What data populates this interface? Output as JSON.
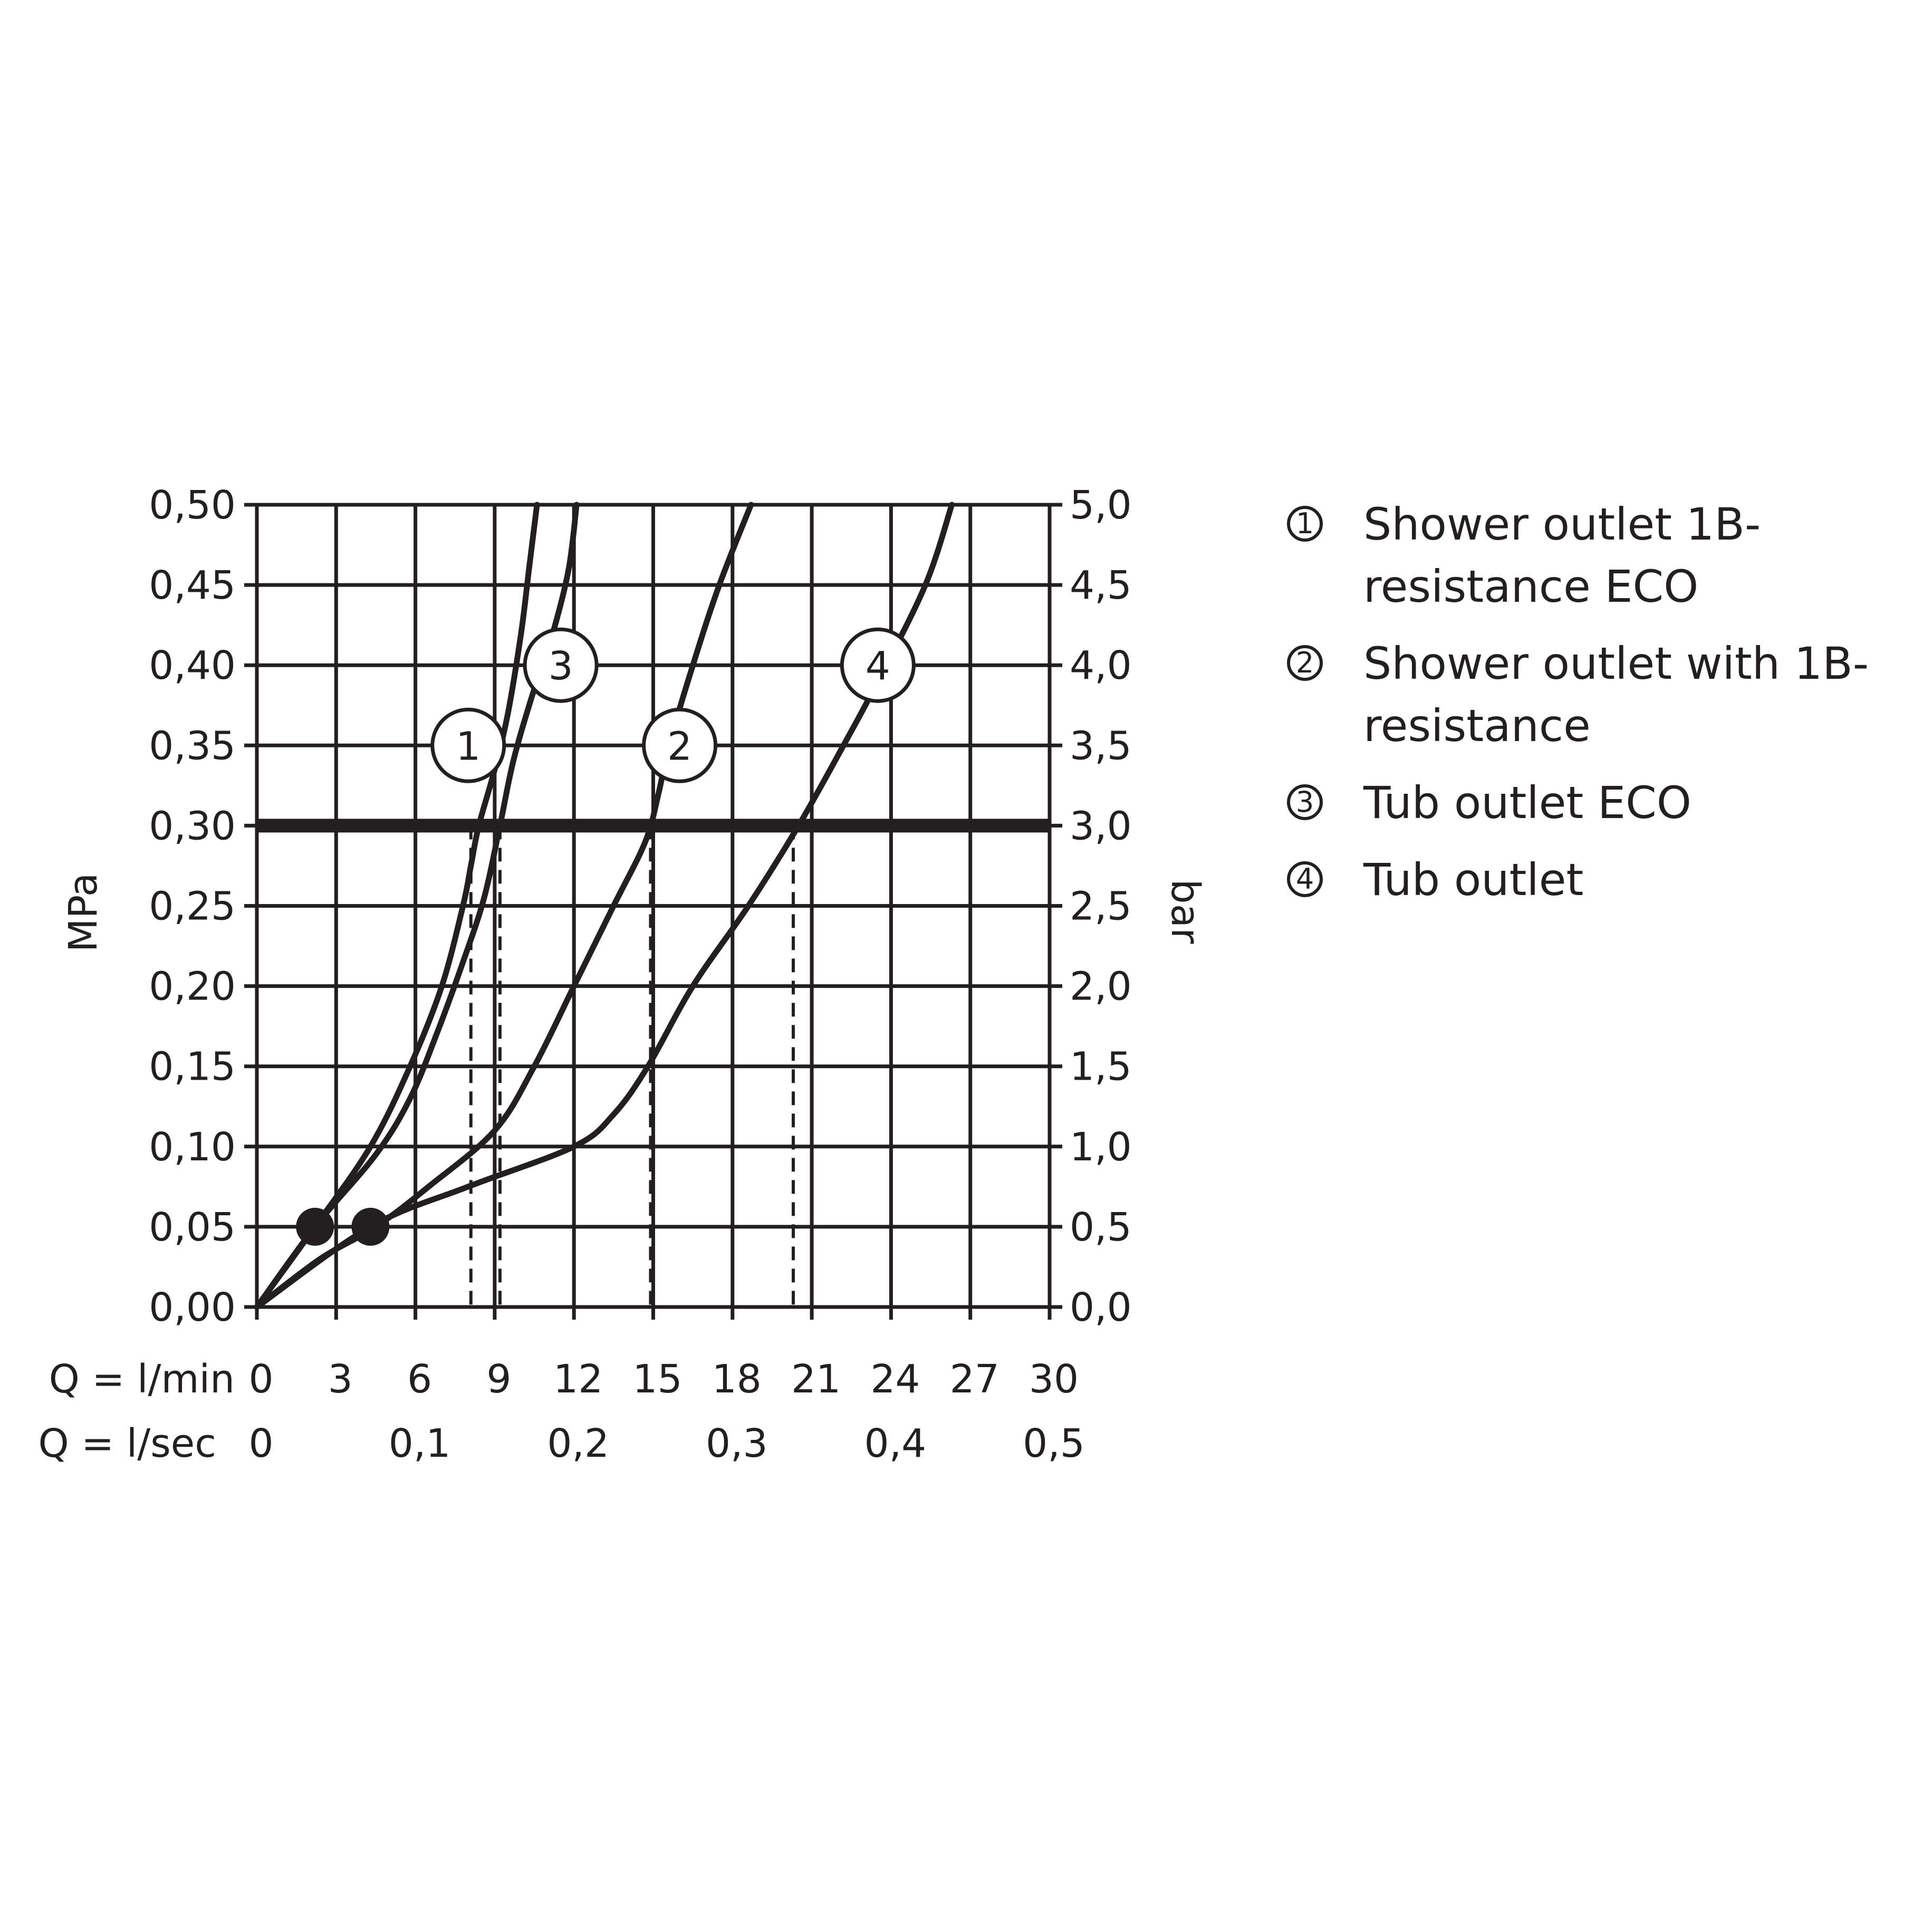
{
  "chart_data": {
    "type": "line",
    "ylabel_left": "MPa",
    "ylabel_right": "bar",
    "x_row_labels": [
      "Q = l/min",
      "Q = l/sec"
    ],
    "x_ticks_lmin": [
      "0",
      "3",
      "6",
      "9",
      "12",
      "15",
      "18",
      "21",
      "24",
      "27",
      "30"
    ],
    "x_ticks_lsec": [
      {
        "value": 0,
        "label": "0"
      },
      {
        "value": 6,
        "label": "0,1"
      },
      {
        "value": 12,
        "label": "0,2"
      },
      {
        "value": 18,
        "label": "0,3"
      },
      {
        "value": 24,
        "label": "0,4"
      },
      {
        "value": 30,
        "label": "0,5"
      }
    ],
    "y_ticks_left": [
      "0,00",
      "0,05",
      "0,10",
      "0,15",
      "0,20",
      "0,25",
      "0,30",
      "0,35",
      "0,40",
      "0,45",
      "0,50"
    ],
    "y_ticks_right": [
      "0,0",
      "0,5",
      "1,0",
      "1,5",
      "2,0",
      "2,5",
      "3,0",
      "3,5",
      "4,0",
      "4,5",
      "5,0"
    ],
    "xlim": [
      0,
      30
    ],
    "ylim": [
      0,
      0.5
    ],
    "grid": true,
    "reference_line": {
      "y": 0.3
    },
    "series": [
      {
        "marker": "1",
        "color": "#231f20",
        "points": [
          [
            0,
            0
          ],
          [
            2.2,
            0.05
          ],
          [
            4.3,
            0.1
          ],
          [
            5.8,
            0.15
          ],
          [
            7,
            0.2
          ],
          [
            7.8,
            0.25
          ],
          [
            8.1,
            0.275
          ],
          [
            8.4,
            0.3
          ],
          [
            9,
            0.335
          ],
          [
            9.5,
            0.37
          ],
          [
            10,
            0.42
          ],
          [
            10.3,
            0.46
          ],
          [
            10.6,
            0.5
          ]
        ],
        "label_at": [
          8,
          0.35
        ],
        "drop_x": 8.1
      },
      {
        "marker": "2",
        "color": "#231f20",
        "points": [
          [
            0,
            0
          ],
          [
            2.4,
            0.03
          ],
          [
            4.5,
            0.05
          ],
          [
            6.5,
            0.075
          ],
          [
            9,
            0.11
          ],
          [
            10.5,
            0.15
          ],
          [
            12,
            0.2
          ],
          [
            13.5,
            0.25
          ],
          [
            14.7,
            0.29
          ],
          [
            15.2,
            0.32
          ],
          [
            15.6,
            0.35
          ],
          [
            16.5,
            0.4
          ],
          [
            17.5,
            0.45
          ],
          [
            18.7,
            0.5
          ]
        ],
        "label_at": [
          16,
          0.35
        ],
        "drop_x": 14.9
      },
      {
        "marker": "3",
        "color": "#231f20",
        "points": [
          [
            0,
            0
          ],
          [
            2.2,
            0.05
          ],
          [
            4.5,
            0.095
          ],
          [
            5.8,
            0.13
          ],
          [
            6.8,
            0.17
          ],
          [
            7.8,
            0.215
          ],
          [
            8.6,
            0.255
          ],
          [
            9.2,
            0.3
          ],
          [
            9.7,
            0.34
          ],
          [
            10.4,
            0.38
          ],
          [
            11.2,
            0.42
          ],
          [
            11.8,
            0.46
          ],
          [
            12.1,
            0.5
          ]
        ],
        "label_at": [
          11.5,
          0.4
        ],
        "drop_x": 9.2
      },
      {
        "marker": "4",
        "color": "#231f20",
        "points": [
          [
            0,
            0
          ],
          [
            4.3,
            0.05
          ],
          [
            8,
            0.075
          ],
          [
            12,
            0.1
          ],
          [
            13.5,
            0.12
          ],
          [
            14.8,
            0.15
          ],
          [
            16.5,
            0.2
          ],
          [
            18.6,
            0.25
          ],
          [
            20.5,
            0.3
          ],
          [
            22.2,
            0.35
          ],
          [
            23.5,
            0.39
          ],
          [
            25.3,
            0.45
          ],
          [
            26.3,
            0.5
          ]
        ],
        "label_at": [
          23.5,
          0.4
        ],
        "drop_x": 20.3
      }
    ],
    "points_highlighted": [
      [
        2.2,
        0.05
      ],
      [
        4.3,
        0.05
      ]
    ]
  },
  "legend": [
    {
      "marker": "1",
      "text": "Shower outlet 1B-resistance ECO"
    },
    {
      "marker": "2",
      "text": "Shower outlet with 1B-resistance"
    },
    {
      "marker": "3",
      "text": "Tub outlet ECO"
    },
    {
      "marker": "4",
      "text": "Tub outlet"
    }
  ]
}
